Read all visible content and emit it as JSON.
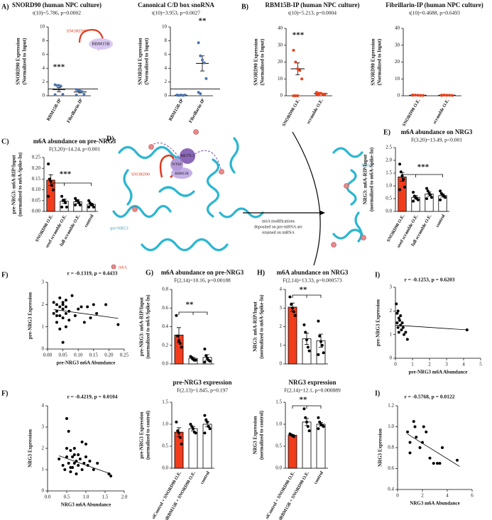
{
  "chart_data": [
    {
      "type": "dot",
      "panel": "A)",
      "title": "SNORD90 (human NPC culture)",
      "subtitle": "t(10)=5.786, p=0.0002",
      "ylabel": [
        "SNORD90 Expression",
        "(Normalized to Input)"
      ],
      "categories": [
        "RBM15B-IP",
        "Fibrillarin-IP"
      ],
      "values": [
        0.9,
        0.55
      ],
      "errors": [
        0.3,
        0.13
      ],
      "points": [
        [
          1.6,
          1.5,
          1.5,
          1.4,
          0.2,
          0.15
        ],
        [
          0.9,
          0.8,
          0.7,
          0.6,
          0.2,
          0.1
        ]
      ],
      "color": "#4f74ad",
      "refline": 1,
      "ylim": [
        0,
        10
      ],
      "yticks": [
        0,
        2,
        4,
        6,
        8,
        10
      ],
      "sig": "***",
      "inset_labels": [
        "SNORD90",
        "RBM15B"
      ]
    },
    {
      "type": "dot",
      "title": "Canonical C/D box snoRNA",
      "subtitle": "t(10)=3.953, p=0.0027",
      "ylabel": [
        "SNORD44 Expression",
        "(Normalized to Input)"
      ],
      "categories": [
        "RBM15B-IP",
        "Fibrillarin-IP"
      ],
      "values": [
        0.08,
        4.7
      ],
      "errors": [
        0.02,
        1.1
      ],
      "points": [
        [
          0.1,
          0.05,
          0.1,
          0.05,
          0.1,
          0.1
        ],
        [
          7.7,
          5.8,
          5.2,
          4.8,
          2.5,
          0.5,
          0.3
        ]
      ],
      "color": "#4f74ad",
      "refline": 1,
      "ylim": [
        0,
        10
      ],
      "yticks": [
        0,
        2,
        4,
        6,
        8,
        10
      ],
      "sig": "**"
    },
    {
      "type": "dot",
      "panel": "B)",
      "title": "RBM15B-IP (human NPC culture)",
      "subtitle": "t(10)=5.213, p=0.0004",
      "ylabel": [
        "SNORD90 Expression",
        "(Normalized to Input)"
      ],
      "categories": [
        "SNORD90 O.E.",
        "scramble O.E."
      ],
      "values": [
        16,
        1.3
      ],
      "errors": [
        3.5,
        0.2
      ],
      "points": [
        [
          27,
          20,
          16,
          15,
          10,
          0,
          0,
          0
        ],
        [
          2,
          1.5,
          1.5,
          1,
          1,
          1,
          0.5
        ]
      ],
      "color": "#e8401c",
      "ylim": [
        0,
        40
      ],
      "yticks": [
        0,
        10,
        20,
        30,
        40
      ],
      "sig": "***"
    },
    {
      "type": "dot",
      "title": "Fibrillarin-IP (human NPC culture)",
      "subtitle": "t(10)=0.4688, p=0.6493",
      "ylabel": [
        "SNORD90 Expression",
        "(Normalized to Input)"
      ],
      "categories": [
        "SNORD90 O.E.",
        "scramble O.E."
      ],
      "values": [
        0.3,
        0.3
      ],
      "errors": [
        0.05,
        0.05
      ],
      "points": [
        [
          0.5,
          0.4,
          0.3,
          0.2,
          0.2,
          0.3
        ],
        [
          0.4,
          0.4,
          0.3,
          0.3,
          0.2,
          0.2
        ]
      ],
      "color": "#e8401c",
      "ylim": [
        0,
        40
      ],
      "yticks": [
        0,
        10,
        20,
        30,
        40
      ]
    },
    {
      "type": "bar",
      "panel": "C)",
      "title": "m6A abundance on pre-NRG3",
      "subtitle": "F(3,20)=14.24, p<0.001",
      "ylabel": [
        "pre-NRG3: m6A-RIP/Input",
        "(normalized to m6A-Spike-In)"
      ],
      "categories": [
        "SNORD90 O.E.",
        "seed scramble O.E.",
        "full scramble O.E.",
        "control"
      ],
      "values": [
        0.145,
        0.047,
        0.045,
        0.033
      ],
      "errors": [
        0.025,
        0.01,
        0.008,
        0.005
      ],
      "points": [
        [
          0.22,
          0.15,
          0.14,
          0.12,
          0.1,
          0.07
        ],
        [
          0.07,
          0.05,
          0.05,
          0.04,
          0.02,
          0.02
        ],
        [
          0.06,
          0.05,
          0.05,
          0.04,
          0.03,
          0.03
        ],
        [
          0.05,
          0.04,
          0.03,
          0.03,
          0.02,
          0.02
        ]
      ],
      "colors": [
        "#f23d1d",
        "#ffffff",
        "#ffffff",
        "#ffffff"
      ],
      "ylim": [
        0,
        0.25
      ],
      "yticks": [
        {
          "value": 0,
          "label": "0.00"
        },
        0.05,
        {
          "value": 0.1,
          "label": "0.10"
        },
        0.15,
        {
          "value": 0.2,
          "label": "0.20"
        },
        0.25
      ],
      "sig": "***"
    },
    {
      "type": "bar",
      "panel": "E)",
      "title": "m6A abundance on NRG3",
      "subtitle": "F(3,20)=13.49, p<0.001",
      "ylabel": [
        "NRG3: m6A-RIP/Input",
        "(normalized to m6A-Spike-In)"
      ],
      "categories": [
        "SNORD90 O.E.",
        "seed scramble O.E.",
        "full scramble O.E.",
        "control"
      ],
      "values": [
        1.35,
        0.55,
        0.68,
        0.62
      ],
      "errors": [
        0.17,
        0.07,
        0.08,
        0.06
      ],
      "points": [
        [
          1.85,
          1.55,
          1.4,
          1.25,
          0.95,
          0.85
        ],
        [
          0.75,
          0.6,
          0.55,
          0.5,
          0.45,
          0.4
        ],
        [
          0.9,
          0.8,
          0.7,
          0.65,
          0.55,
          0.5
        ],
        [
          0.8,
          0.7,
          0.65,
          0.6,
          0.55,
          0.45
        ]
      ],
      "colors": [
        "#f23d1d",
        "#ffffff",
        "#ffffff",
        "#ffffff"
      ],
      "ylim": [
        0,
        2.5
      ],
      "yticks": [
        {
          "value": 0,
          "label": "0.0"
        },
        0.5,
        {
          "value": 1,
          "label": "1.0"
        },
        1.5,
        {
          "value": 2,
          "label": "2.0"
        },
        2.5
      ],
      "sig": "***"
    },
    {
      "type": "scatter",
      "panel": "F)",
      "annotation": "r = -0.1319, p = 0.4433",
      "xlabel": "pre-NRG3 m6A Abundance",
      "ylabel": [
        "pre-NRG3 Expression"
      ],
      "x": [
        0.02,
        0.02,
        0.03,
        0.03,
        0.03,
        0.04,
        0.04,
        0.04,
        0.05,
        0.05,
        0.05,
        0.05,
        0.06,
        0.06,
        0.06,
        0.07,
        0.07,
        0.08,
        0.09,
        0.1,
        0.11,
        0.12,
        0.13,
        0.14,
        0.15,
        0.16,
        0.19,
        0.23,
        0.03,
        0.04,
        0.05,
        0.06
      ],
      "y": [
        2.1,
        1.6,
        2.0,
        1.7,
        1.2,
        2.3,
        1.9,
        1.5,
        2.0,
        1.8,
        1.4,
        0.3,
        2.2,
        1.9,
        1.0,
        1.7,
        1.3,
        2.4,
        1.5,
        1.8,
        1.9,
        1.2,
        1.9,
        1.4,
        2.0,
        1.6,
        2.0,
        1.1,
        1.5,
        0.9,
        2.1,
        1.6
      ],
      "trend": {
        "x": [
          0.02,
          0.23
        ],
        "y": [
          1.78,
          1.38
        ]
      },
      "color": "#000000",
      "xlim": [
        0,
        0.25
      ],
      "xticks": [
        {
          "value": 0,
          "label": "0.00"
        },
        0.05,
        {
          "value": 0.1,
          "label": "0.10"
        },
        0.15,
        {
          "value": 0.2,
          "label": "0.20"
        },
        0.25
      ],
      "ylim": [
        0,
        3
      ],
      "yticks": [
        0,
        1,
        2,
        3
      ]
    },
    {
      "type": "scatter",
      "panel": "F)",
      "annotation": "r = -0.4219, p = 0.0104",
      "xlabel": "NRG3 m6A Abundance",
      "ylabel": [
        "NRG3 Expression"
      ],
      "x": [
        0.3,
        0.4,
        0.45,
        0.5,
        0.5,
        0.55,
        0.55,
        0.6,
        0.6,
        0.65,
        0.65,
        0.7,
        0.7,
        0.75,
        0.75,
        0.8,
        0.8,
        0.85,
        0.9,
        0.9,
        0.95,
        1.0,
        1.0,
        1.05,
        1.1,
        1.2,
        1.3,
        1.6,
        1.65,
        0.5,
        0.6,
        0.7
      ],
      "y": [
        1.5,
        1.2,
        1.0,
        3.4,
        1.6,
        2.8,
        1.3,
        1.9,
        0.9,
        1.6,
        1.1,
        2.0,
        1.3,
        1.4,
        0.8,
        1.7,
        1.2,
        1.5,
        2.3,
        1.0,
        1.3,
        2.2,
        1.6,
        1.2,
        1.4,
        1.0,
        1.3,
        0.8,
        0.7,
        2.0,
        1.1,
        1.7
      ],
      "trend": {
        "x": [
          0.3,
          1.65
        ],
        "y": [
          1.65,
          0.8
        ]
      },
      "color": "#000000",
      "xlim": [
        0,
        2
      ],
      "xticks": [
        {
          "value": 0,
          "label": "0.0"
        },
        0.5,
        {
          "value": 1,
          "label": "1.0"
        },
        1.5,
        {
          "value": 2,
          "label": "2.0"
        }
      ],
      "ylim": [
        0,
        4
      ],
      "yticks": [
        0,
        1,
        2,
        3,
        4
      ]
    },
    {
      "type": "bar",
      "panel": "G)",
      "title": "m6A abundance on pre-NRG3",
      "subtitle": "F(2,14)=10.16, p=0.00188",
      "ylabel": [
        "pre-NRG3: m6A-RIP/Input",
        "(normalized to m6A-Spike-In)"
      ],
      "values": [
        0.31,
        0.06,
        0.07
      ],
      "errors": [
        0.08,
        0.01,
        0.03
      ],
      "points": [
        [
          0.52,
          0.3,
          0.25,
          0.22,
          0.18
        ],
        [
          0.08,
          0.07,
          0.05,
          0.04,
          0.04
        ],
        [
          0.16,
          0.09,
          0.06,
          0.04,
          0.03,
          0.02
        ]
      ],
      "colors": [
        "#f23d1d",
        "#ffffff",
        "#ffffff"
      ],
      "ylim": [
        0,
        0.8
      ],
      "yticks": [
        {
          "value": 0,
          "label": "0.0"
        },
        0.2,
        0.4,
        0.6,
        0.8
      ],
      "sig": "**"
    },
    {
      "type": "bar",
      "title": "pre-NRG3 expression",
      "subtitle": "F(2,13)=1.845, p=0.197",
      "ylabel": [
        "pre-NRG3 Expression",
        "(normalized to control)"
      ],
      "categories": [
        "siControl + SNORD90 O.E.",
        "siRBM15B + SNORD90 O.E.",
        "control"
      ],
      "values": [
        0.82,
        0.9,
        1.0
      ],
      "errors": [
        0.1,
        0.05,
        0.06
      ],
      "points": [
        [
          1.05,
          0.85,
          0.8,
          0.7,
          0.55
        ],
        [
          1.0,
          0.95,
          0.9,
          0.82,
          0.8
        ],
        [
          1.2,
          1.1,
          1.05,
          0.95,
          0.9,
          0.8
        ]
      ],
      "colors": [
        "#f23d1d",
        "#ffffff",
        "#ffffff"
      ],
      "ylim": [
        0,
        1.5
      ],
      "yticks": [
        {
          "value": 0,
          "label": "0.0"
        },
        0.5,
        {
          "value": 1,
          "label": "1.0"
        },
        1.5
      ]
    },
    {
      "type": "bar",
      "panel": "H)",
      "title": "m6A abundance on NRG3",
      "subtitle": "F(2,14)=13.33, p=0.000573",
      "ylabel": [
        "NRG3: m6A-RIP/Input",
        "(normalized to m6A-Spike-In)"
      ],
      "values": [
        3.05,
        1.35,
        1.25
      ],
      "errors": [
        0.22,
        0.3,
        0.35
      ],
      "points": [
        [
          3.6,
          3.2,
          3.0,
          2.8,
          2.6
        ],
        [
          2.1,
          1.7,
          1.3,
          0.9,
          0.7
        ],
        [
          2.3,
          1.5,
          1.2,
          1.0,
          0.6,
          0.5
        ]
      ],
      "colors": [
        "#f23d1d",
        "#ffffff",
        "#ffffff"
      ],
      "ylim": [
        0,
        4
      ],
      "yticks": [
        0,
        1,
        2,
        3,
        4
      ],
      "sig": "**"
    },
    {
      "type": "bar",
      "title": "NRG3 expression",
      "subtitle": "F(2,14)=12.1, p=0.000889",
      "ylabel": [
        "NRG3 Expression",
        "(normalized to control)"
      ],
      "categories": [
        "siControl + SNORD90 O.E.",
        "siRBM15B + SNORD90 O.E.",
        "control"
      ],
      "values": [
        0.75,
        1.05,
        1.0
      ],
      "errors": [
        0.02,
        0.08,
        0.04
      ],
      "points": [
        [
          0.78,
          0.76,
          0.74,
          0.72
        ],
        [
          1.35,
          1.15,
          1.05,
          0.95,
          0.85
        ],
        [
          1.15,
          1.05,
          1.0,
          0.98,
          0.95,
          0.9
        ]
      ],
      "colors": [
        "#f23d1d",
        "#ffffff",
        "#ffffff"
      ],
      "ylim": [
        0,
        1.5
      ],
      "yticks": [
        {
          "value": 0,
          "label": "0.0"
        },
        0.5,
        {
          "value": 1,
          "label": "1.0"
        },
        1.5
      ],
      "sig": "**"
    },
    {
      "type": "scatter",
      "panel": "I)",
      "annotation": "r = -0.1253, p = 0.6203",
      "xlabel": "pre-NRG3 m6A Abundance",
      "ylabel": [
        "pre-NRG3 Expression"
      ],
      "x": [
        0.05,
        0.1,
        0.1,
        0.15,
        0.15,
        0.2,
        0.2,
        0.25,
        0.3,
        0.3,
        0.35,
        0.4,
        0.45,
        0.5,
        0.6,
        0.7,
        4.2
      ],
      "y": [
        2.3,
        1.9,
        1.5,
        2.0,
        1.3,
        1.7,
        1.1,
        1.6,
        1.8,
        1.4,
        1.2,
        1.5,
        1.3,
        1.0,
        1.1,
        0.8,
        1.2
      ],
      "trend": {
        "x": [
          0,
          4.2
        ],
        "y": [
          1.4,
          1.2
        ]
      },
      "color": "#000000",
      "xlim": [
        0,
        5
      ],
      "xticks": [
        0,
        1,
        2,
        3,
        4,
        5
      ],
      "ylim": [
        0,
        3
      ],
      "yticks": [
        0,
        1,
        2,
        3
      ]
    },
    {
      "type": "scatter",
      "panel": "I)",
      "annotation": "r = -0.5768, p = 0.0122",
      "xlabel": "NRG3 m6A Abundance",
      "ylabel": [
        "NRG3 Expression"
      ],
      "x": [
        0.8,
        1.0,
        1.3,
        1.5,
        1.8,
        2.0,
        2.1,
        2.3,
        2.6,
        2.9,
        3.2,
        3.4,
        3.6,
        4.8,
        1.0,
        1.4
      ],
      "y": [
        0.95,
        0.85,
        1.05,
        0.9,
        0.8,
        0.85,
        1.0,
        0.95,
        0.7,
        0.65,
        0.65,
        0.65,
        0.8,
        0.68,
        0.75,
        1.0
      ],
      "trend": {
        "x": [
          0.8,
          5
        ],
        "y": [
          0.93,
          0.62
        ]
      },
      "color": "#000000",
      "xlim": [
        0,
        6
      ],
      "xticks": [
        0,
        2,
        4,
        6
      ],
      "ylim": [
        0.4,
        1.2
      ],
      "yticks": [
        0.4,
        0.6,
        0.8,
        {
          "value": 1,
          "label": "1.0"
        },
        1.2
      ]
    }
  ],
  "diagram": {
    "panel": "D)",
    "snorna": "SNORD90",
    "proteins": [
      "METTL3",
      "WTAP",
      "RBM15B"
    ],
    "pre_mrna": "pre-NRG3",
    "mrna": "NRG3",
    "legend": "m6A",
    "arrow_text": [
      "m6A modifications",
      "deposited on pre-mRNA are",
      "retained on mRNA"
    ]
  }
}
